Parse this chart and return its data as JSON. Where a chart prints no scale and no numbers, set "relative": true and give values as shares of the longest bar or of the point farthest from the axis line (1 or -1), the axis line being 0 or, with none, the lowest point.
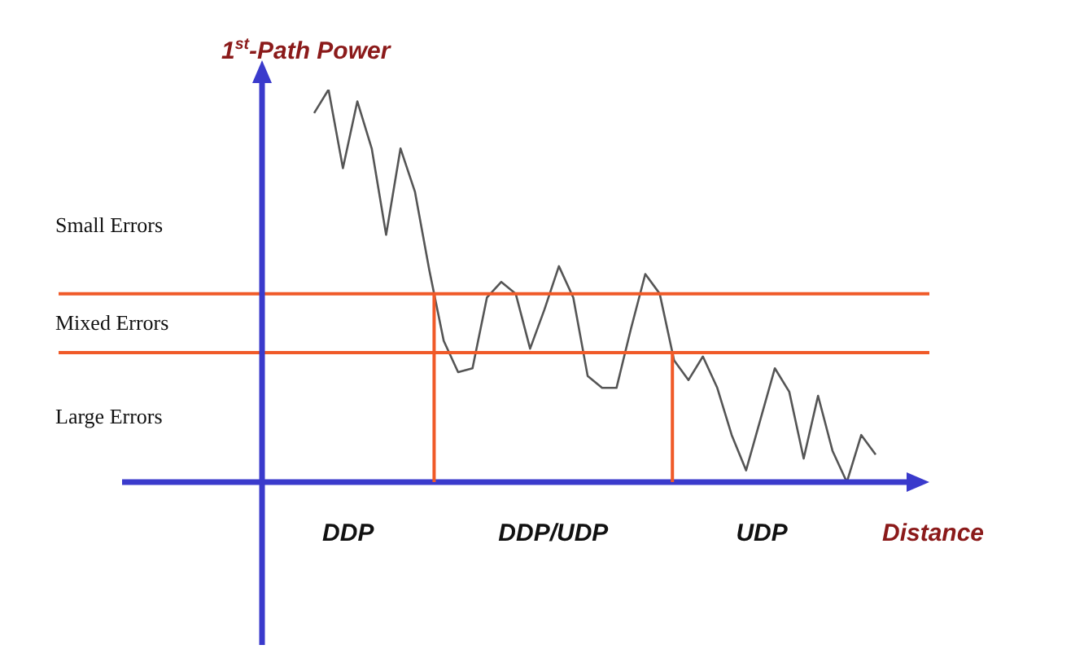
{
  "chart_data": {
    "type": "line",
    "relative": true,
    "ylabel": "1$^{st}$-Path Power",
    "xlabel": "Distance",
    "legend": false,
    "marker": "none",
    "line_style": "solid",
    "categories": [
      null,
      null,
      null,
      null,
      null,
      null,
      null,
      null,
      null,
      null,
      null,
      null,
      null,
      null,
      null,
      null,
      null,
      null,
      null,
      null,
      null,
      null,
      null,
      null,
      null,
      null,
      null,
      null,
      null,
      null,
      null,
      null,
      null,
      null,
      null,
      null,
      null,
      null,
      null,
      null
    ],
    "series": [
      {
        "color": "#555555",
        "values": [
          0.94,
          1.0,
          0.8,
          0.97,
          0.85,
          0.63,
          0.85,
          0.74,
          0.54,
          0.36,
          0.28,
          0.29,
          0.47,
          0.51,
          0.48,
          0.34,
          0.44,
          0.55,
          0.47,
          0.27,
          0.24,
          0.24,
          0.39,
          0.53,
          0.48,
          0.31,
          0.26,
          0.32,
          0.24,
          0.12,
          0.03,
          0.16,
          0.29,
          0.23,
          0.06,
          0.22,
          0.08,
          0.0,
          0.12,
          0.07
        ]
      }
    ],
    "ref_lines": [
      {
        "axis": "y",
        "value": 0.48,
        "color": "#f05a28"
      },
      {
        "axis": "y",
        "value": 0.33,
        "color": "#f05a28"
      }
    ],
    "annotations": [
      "Small Errors",
      "Mixed Errors",
      "Large Errors",
      "DDP",
      "DDP/UDP",
      "UDP"
    ]
  }
}
